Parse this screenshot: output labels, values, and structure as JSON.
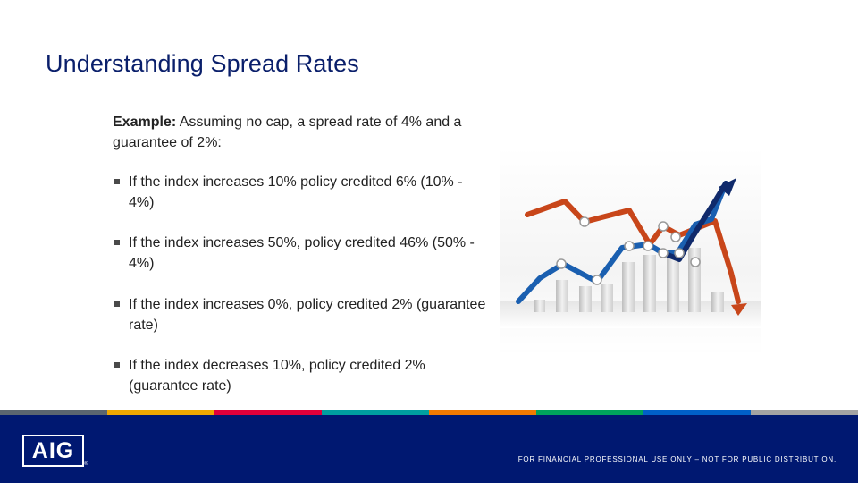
{
  "title": "Understanding Spread Rates",
  "intro": {
    "label": "Example:",
    "text": " Assuming no cap, a spread rate of 4% and a guarantee of 2%:"
  },
  "bullets": [
    "If the index increases 10% policy credited 6% (10% - 4%)",
    "If the index increases 50%, policy credited 46% (50% - 4%)",
    "If the index increases 0%, policy credited 2% (guarantee rate)",
    "If the index decreases 10%, policy credited 2% (guarantee rate)"
  ],
  "graphic": {
    "icon": "stock-trend-graphic",
    "colors": {
      "orange_line": "#c8461a",
      "blue_line": "#1a5fb0",
      "navy_line": "#102a6b"
    }
  },
  "stripe_colors": [
    "#5b6670",
    "#f0a800",
    "#e0003b",
    "#00a0a0",
    "#f27a00",
    "#00a35c",
    "#0060c8",
    "#a3a3a3"
  ],
  "footer": {
    "logo_text": "AIG",
    "logo_mark": "®",
    "disclaimer": "FOR FINANCIAL PROFESSIONAL USE ONLY – NOT FOR PUBLIC DISTRIBUTION.",
    "background": "#001871"
  }
}
